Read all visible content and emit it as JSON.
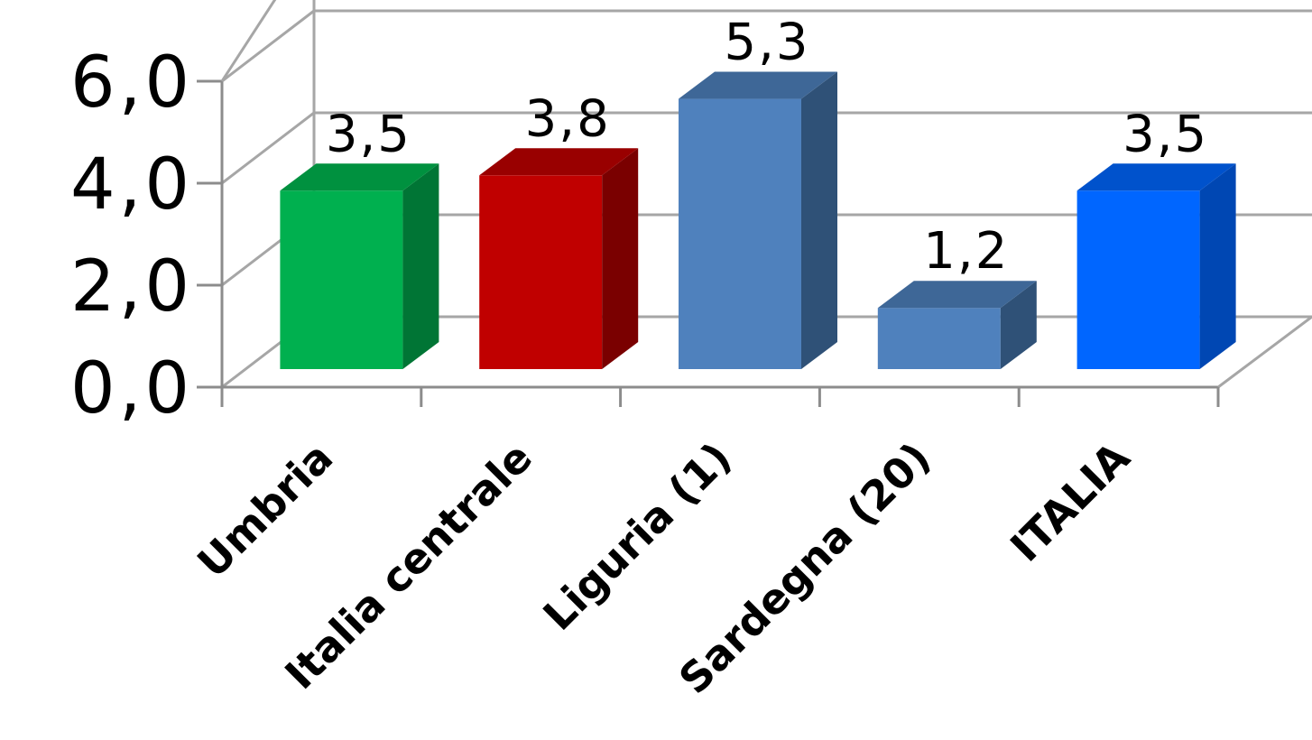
{
  "chart_data": {
    "type": "bar",
    "categories": [
      "Umbria",
      "Italia centrale",
      "Liguria (1)",
      "Sardegna (20)",
      "ITALIA"
    ],
    "values": [
      3.5,
      3.8,
      5.3,
      1.2,
      3.5
    ],
    "value_labels": [
      "3,5",
      "3,8",
      "5,3",
      "1,2",
      "3,5"
    ],
    "ytick_labels": [
      "0,0",
      "2,0",
      "4,0",
      "6,0"
    ],
    "yticks": [
      0,
      2,
      4,
      6
    ],
    "ylim": [
      0,
      6
    ],
    "title": "",
    "xlabel": "",
    "ylabel": "",
    "grid": true,
    "legend": "none",
    "style": "3d-column",
    "colors": [
      {
        "front": "#00b04f",
        "side": "#007535",
        "top": "#00913f"
      },
      {
        "front": "#c00000",
        "side": "#7a0000",
        "top": "#990000"
      },
      {
        "front": "#4f81bd",
        "side": "#2f5177",
        "top": "#3e6797"
      },
      {
        "front": "#4f81bd",
        "side": "#2f5177",
        "top": "#3e6797"
      },
      {
        "front": "#0066ff",
        "side": "#0047b3",
        "top": "#0052cc"
      }
    ]
  }
}
